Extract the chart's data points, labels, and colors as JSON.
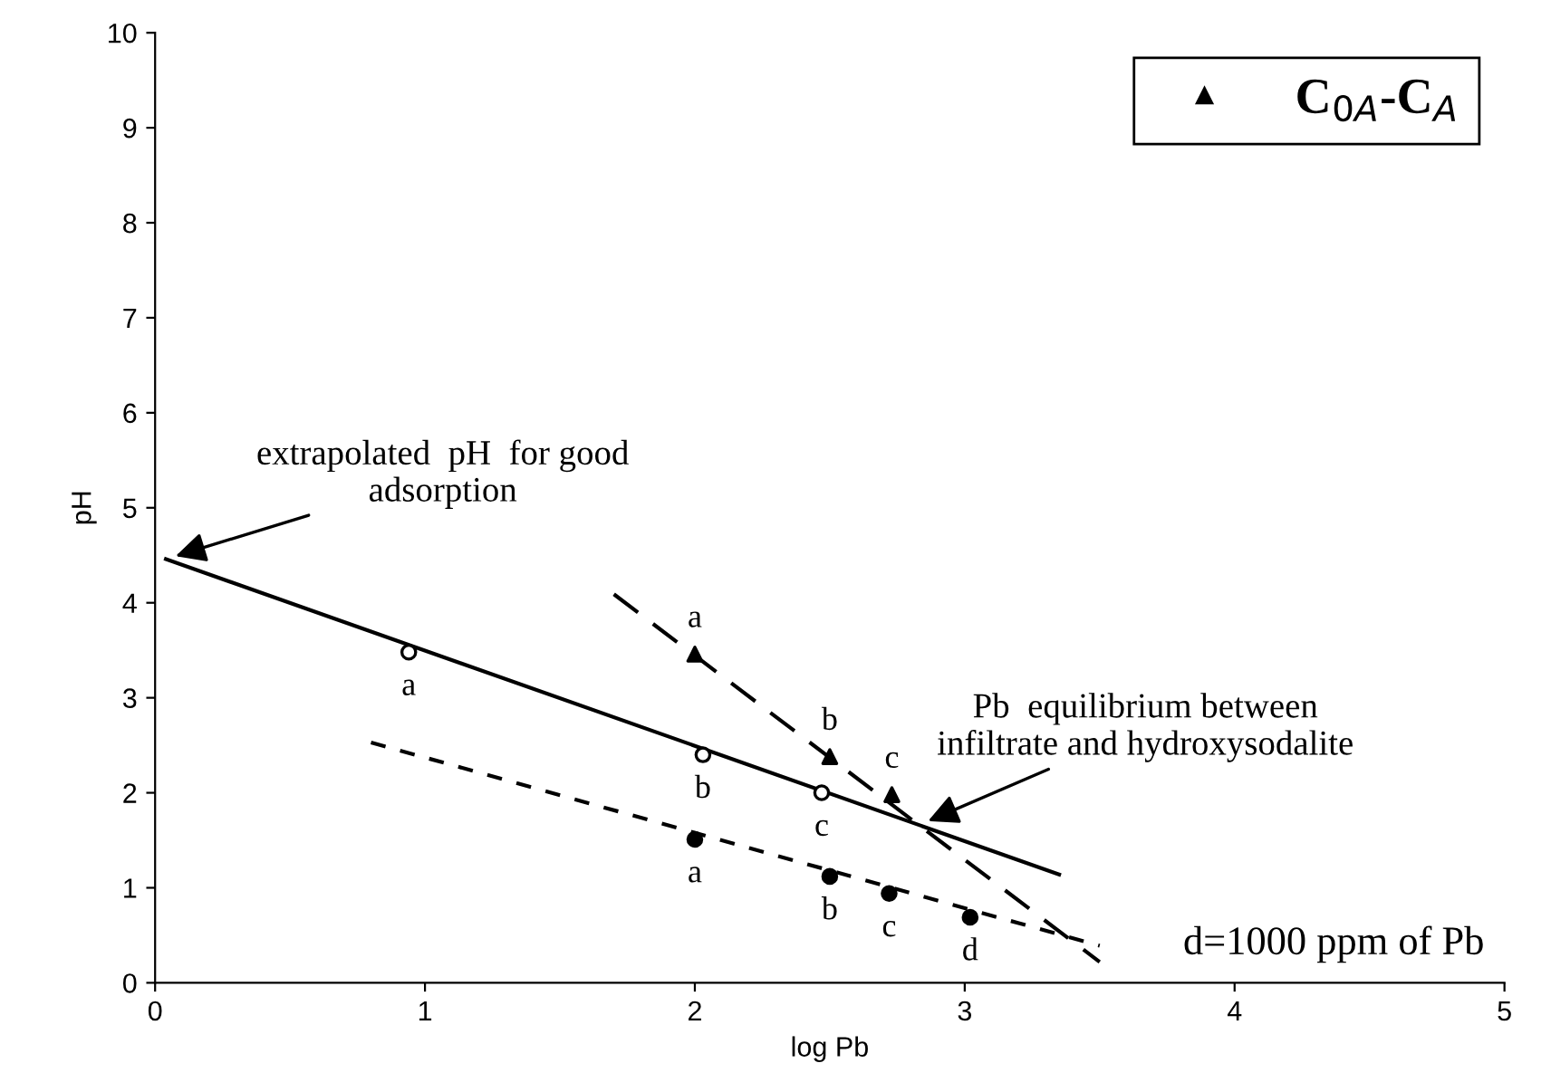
{
  "chart_data": {
    "type": "scatter",
    "xlabel": "log Pb",
    "ylabel": "pH",
    "xlim": [
      0,
      5
    ],
    "ylim": [
      0,
      10
    ],
    "xticks": [
      0,
      1,
      2,
      3,
      4,
      5
    ],
    "yticks": [
      0,
      1,
      2,
      3,
      4,
      5,
      6,
      7,
      8,
      9,
      10
    ],
    "grid": false,
    "legend": "top right",
    "series": [
      {
        "marker": "circle",
        "color": "#000000",
        "x": [
          0.94,
          2.03,
          2.47
        ],
        "values": [
          3.48,
          2.4,
          2.0
        ],
        "value_labels": [
          "a",
          "b",
          "c"
        ]
      },
      {
        "marker": "triangle",
        "name": "C$_{0A}$-C$_{A}$",
        "color": "#000000",
        "x": [
          2.0,
          2.5,
          2.73
        ],
        "values": [
          3.46,
          2.38,
          1.98
        ],
        "value_labels": [
          "a",
          "b",
          "c"
        ]
      },
      {
        "marker": "circle",
        "color": "#000000",
        "x": [
          2.0,
          2.5,
          2.72,
          3.02
        ],
        "values": [
          1.51,
          1.12,
          0.94,
          0.69
        ],
        "value_labels": [
          "a",
          "b",
          "c",
          "d"
        ]
      },
      {
        "type": "line",
        "marker": "none",
        "line_style": "solid",
        "color": "#000000",
        "x": [
          0.04,
          3.35
        ],
        "values": [
          4.46,
          1.14
        ]
      },
      {
        "type": "line",
        "marker": "none",
        "line_style": "dashed",
        "color": "#000000",
        "x": [
          1.7,
          3.5
        ],
        "values": [
          4.09,
          0.22
        ]
      },
      {
        "type": "line",
        "marker": "none",
        "line_style": "dotted",
        "color": "#000000",
        "x": [
          0.8,
          3.5
        ],
        "values": [
          2.53,
          0.39
        ]
      }
    ],
    "annotations": [
      {
        "text": "extrapolated  pH  for good\nadsorption",
        "x": 0.04,
        "y": 4.46
      },
      {
        "text": "Pb  equilibrium between\ninfiltrate and hydroxysodalite",
        "x": 2.83,
        "y": 1.66
      },
      "d=1000 ppm of Pb"
    ]
  }
}
